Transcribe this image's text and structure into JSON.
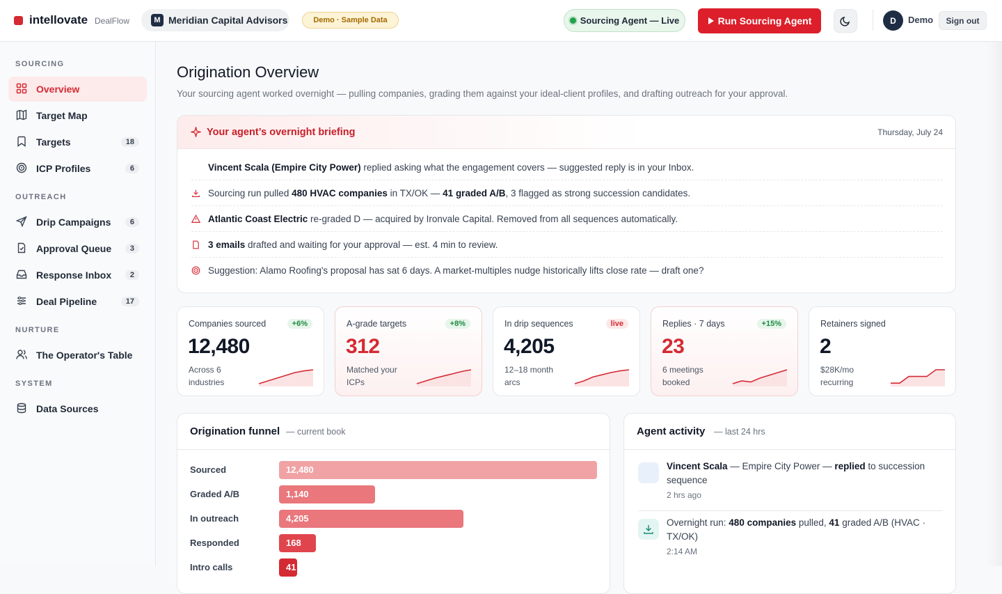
{
  "header": {
    "brand": "intellovate",
    "product": "DealFlow",
    "workspace_initial": "M",
    "workspace": "Meridian Capital Advisors",
    "demo_badge": "Demo · Sample Data",
    "agent_status": "Sourcing Agent — Live",
    "run_button": "Run Sourcing Agent",
    "user_initial": "D",
    "user": "Demo",
    "sign_out": "Sign out"
  },
  "sidebar": {
    "sections": [
      {
        "title": "SOURCING",
        "items": [
          {
            "label": "Overview",
            "active": true
          },
          {
            "label": "Target Map"
          },
          {
            "label": "Targets",
            "count": 18
          },
          {
            "label": "ICP Profiles",
            "count": 6
          }
        ]
      },
      {
        "title": "OUTREACH",
        "items": [
          {
            "label": "Drip Campaigns",
            "count": 6
          },
          {
            "label": "Approval Queue",
            "count": 3
          },
          {
            "label": "Response Inbox",
            "count": 2
          },
          {
            "label": "Deal Pipeline",
            "count": 17
          }
        ]
      },
      {
        "title": "NURTURE",
        "items": [
          {
            "label": "The Operator's Table"
          }
        ]
      },
      {
        "title": "SYSTEM",
        "items": [
          {
            "label": "Data Sources"
          }
        ]
      }
    ]
  },
  "main": {
    "title": "Origination Overview",
    "subtitle": "Your sourcing agent worked overnight — pulling companies, grading them against your ideal-client profiles, and drafting outreach for your approval.",
    "briefing": {
      "title": "Your agent’s overnight briefing",
      "date": "Thursday, July 24",
      "items": [
        {
          "parts": [
            {
              "text": "Vincent Scala (Empire City Power)",
              "bold": true
            },
            {
              "text": " replied asking what the engagement covers — suggested reply is in your Inbox."
            }
          ]
        },
        {
          "parts": [
            {
              "text": "Sourcing run pulled "
            },
            {
              "text": "480 HVAC companies",
              "bold": true
            },
            {
              "text": " in TX/OK — "
            },
            {
              "text": "41 graded A/B",
              "bold": true
            },
            {
              "text": ", 3 flagged as strong succession candidates."
            }
          ]
        },
        {
          "parts": [
            {
              "text": "Atlantic Coast Electric",
              "bold": true
            },
            {
              "text": " re-graded D — acquired by Ironvale Capital. Removed from all sequences automatically."
            }
          ]
        },
        {
          "parts": [
            {
              "text": "3 emails",
              "bold": true
            },
            {
              "text": " drafted and waiting for your approval — est. 4 min to review."
            }
          ]
        },
        {
          "parts": [
            {
              "text": "Suggestion: Alamo Roofing's proposal has sat 6 days. A market-multiples nudge historically lifts close rate — draft one?"
            }
          ]
        }
      ]
    },
    "stats": [
      {
        "label": "Companies sourced",
        "badge": "+6%",
        "value": "12,480",
        "note": "Across 6 industries",
        "spark": [
          1,
          2,
          3,
          4,
          5,
          5.6,
          6
        ]
      },
      {
        "label": "A-grade targets",
        "badge": "+8%",
        "value": "312",
        "note": "Matched your ICPs",
        "highlight": true,
        "spark": [
          1,
          2,
          3,
          3.8,
          4.6,
          5.4,
          6
        ]
      },
      {
        "label": "In drip sequences",
        "badge": "live",
        "badge_tone": "red",
        "value": "4,205",
        "note": "12–18 month arcs",
        "spark": [
          1,
          2,
          3.4,
          4.2,
          5,
          5.6,
          6
        ]
      },
      {
        "label": "Replies · 7 days",
        "badge": "+15%",
        "value": "23",
        "note": "6 meetings booked",
        "highlight": true,
        "spark": [
          1,
          2,
          1.6,
          3,
          4,
          5,
          6
        ]
      },
      {
        "label": "Retainers signed",
        "value": "2",
        "note": "$28K/mo recurring",
        "spark": [
          1,
          1,
          3,
          3,
          3,
          5,
          5
        ]
      }
    ],
    "funnel": {
      "title": "Origination funnel",
      "subtitle": "— current book",
      "rows": [
        {
          "label": "Sourced",
          "value": 12480,
          "value_label": "12,480",
          "color": "#f0a2a5"
        },
        {
          "label": "Graded A/B",
          "value": 1140,
          "value_label": "1,140",
          "color": "#e9777c"
        },
        {
          "label": "In outreach",
          "value": 4205,
          "value_label": "4,205",
          "color": "#e9777c"
        },
        {
          "label": "Responded",
          "value": 168,
          "value_label": "168",
          "color": "#e0454d"
        },
        {
          "label": "Intro calls",
          "value": 41,
          "value_label": "41",
          "color": "#d42a33"
        }
      ]
    },
    "activity": {
      "title": "Agent activity",
      "subtitle": "— last 24 hrs",
      "items": [
        {
          "parts": [
            {
              "text": "Vincent Scala",
              "bold": true
            },
            {
              "text": " — Empire City Power — "
            },
            {
              "text": "replied",
              "bold": true
            },
            {
              "text": " to succession sequence"
            }
          ],
          "time": "2 hrs ago",
          "tone": "blue"
        },
        {
          "parts": [
            {
              "text": "Overnight run: "
            },
            {
              "text": "480 companies",
              "bold": true
            },
            {
              "text": " pulled, "
            },
            {
              "text": "41",
              "bold": true
            },
            {
              "text": " graded A/B (HVAC · TX/OK)"
            }
          ],
          "time": "2:14 AM",
          "tone": "teal"
        }
      ]
    }
  }
}
